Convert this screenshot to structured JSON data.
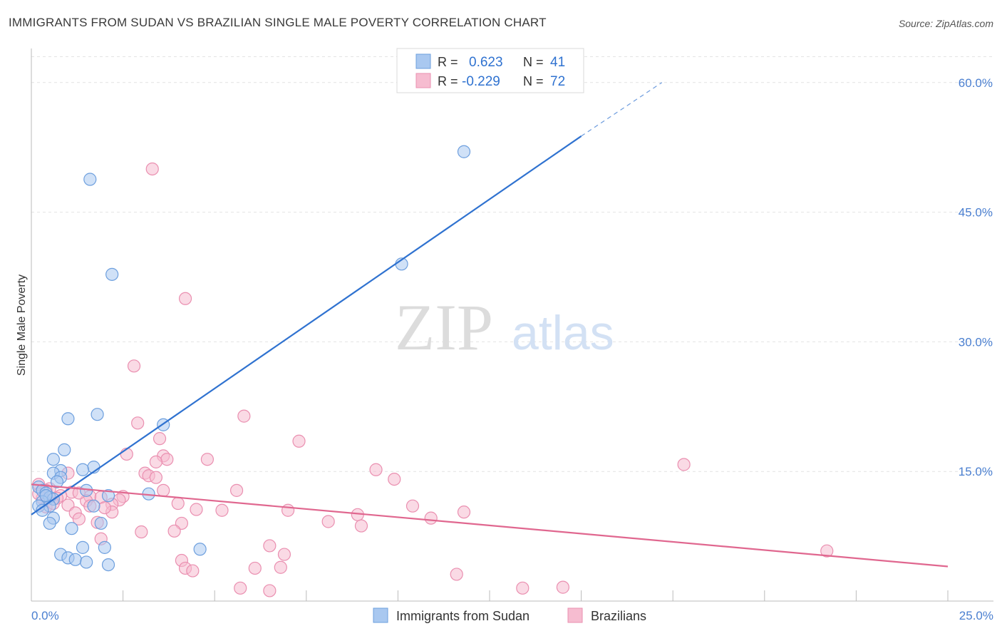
{
  "header": {
    "title": "IMMIGRANTS FROM SUDAN VS BRAZILIAN SINGLE MALE POVERTY CORRELATION CHART",
    "source": "Source: ZipAtlas.com"
  },
  "colors": {
    "sudan_fill": "#a9c8f0",
    "sudan_stroke": "#6d9fde",
    "sudan_line": "#2f72d0",
    "brazil_fill": "#f6bcd0",
    "brazil_stroke": "#ea8fb0",
    "brazil_line": "#e0678f",
    "axis_label": "#4a7fd0",
    "grid": "#e2e2e2"
  },
  "legend_box": {
    "row1": {
      "r_label": "R =",
      "r_value": "0.623",
      "n_label": "N =",
      "n_value": "41"
    },
    "row2": {
      "r_label": "R =",
      "r_value": "-0.229",
      "n_label": "N =",
      "n_value": "72"
    }
  },
  "bottom_legend": {
    "sudan": "Immigrants from Sudan",
    "brazil": "Brazilians"
  },
  "watermark": {
    "zip": "ZIP",
    "atlas": "atlas"
  },
  "chart_data": {
    "type": "scatter",
    "title": "IMMIGRANTS FROM SUDAN VS BRAZILIAN SINGLE MALE POVERTY CORRELATION CHART",
    "xlabel": "",
    "ylabel": "Single Male Poverty",
    "xlim": [
      0,
      25
    ],
    "ylim": [
      0,
      63
    ],
    "x_tick_labels": [
      "0.0%",
      "25.0%"
    ],
    "y_ticks": [
      15,
      30,
      45,
      60
    ],
    "y_tick_labels": [
      "15.0%",
      "30.0%",
      "45.0%",
      "60.0%"
    ],
    "series": [
      {
        "name": "Immigrants from Sudan",
        "r": 0.623,
        "n": 41,
        "trend": {
          "x0": 0,
          "y0": 10.0,
          "x1": 15,
          "y1": 53.8,
          "dash_to_x": 17.2,
          "dash_to_y": 60.0
        },
        "points": [
          [
            1.6,
            48.8
          ],
          [
            2.2,
            37.8
          ],
          [
            11.8,
            52.0
          ],
          [
            10.1,
            39.0
          ],
          [
            1.0,
            21.1
          ],
          [
            1.8,
            21.6
          ],
          [
            3.6,
            20.4
          ],
          [
            0.9,
            17.5
          ],
          [
            0.6,
            16.4
          ],
          [
            1.7,
            15.5
          ],
          [
            1.4,
            15.2
          ],
          [
            0.8,
            15.1
          ],
          [
            0.6,
            14.8
          ],
          [
            0.8,
            14.3
          ],
          [
            0.7,
            13.8
          ],
          [
            0.2,
            13.2
          ],
          [
            0.3,
            12.8
          ],
          [
            0.4,
            12.5
          ],
          [
            1.5,
            12.8
          ],
          [
            2.1,
            12.2
          ],
          [
            3.2,
            12.4
          ],
          [
            0.5,
            12.0
          ],
          [
            0.6,
            11.8
          ],
          [
            0.3,
            11.5
          ],
          [
            0.5,
            11.0
          ],
          [
            0.2,
            11.0
          ],
          [
            1.7,
            11.0
          ],
          [
            0.3,
            10.5
          ],
          [
            0.6,
            9.6
          ],
          [
            0.5,
            9.0
          ],
          [
            1.1,
            8.4
          ],
          [
            1.9,
            9.0
          ],
          [
            2.0,
            6.2
          ],
          [
            1.4,
            6.2
          ],
          [
            4.6,
            6.0
          ],
          [
            0.8,
            5.4
          ],
          [
            1.0,
            5.0
          ],
          [
            1.2,
            4.8
          ],
          [
            1.5,
            4.5
          ],
          [
            2.1,
            4.2
          ],
          [
            0.4,
            12.2
          ]
        ]
      },
      {
        "name": "Brazilians",
        "r": -0.229,
        "n": 72,
        "trend": {
          "x0": 0,
          "y0": 13.5,
          "x1": 25,
          "y1": 4.0
        },
        "points": [
          [
            3.3,
            50.0
          ],
          [
            4.2,
            35.0
          ],
          [
            2.8,
            27.2
          ],
          [
            5.8,
            21.4
          ],
          [
            2.9,
            20.6
          ],
          [
            3.5,
            18.8
          ],
          [
            7.3,
            18.5
          ],
          [
            17.8,
            15.8
          ],
          [
            2.6,
            17.0
          ],
          [
            3.6,
            16.8
          ],
          [
            4.8,
            16.4
          ],
          [
            3.7,
            16.4
          ],
          [
            3.4,
            16.1
          ],
          [
            9.4,
            15.2
          ],
          [
            3.1,
            14.8
          ],
          [
            3.2,
            14.5
          ],
          [
            3.4,
            14.3
          ],
          [
            1.0,
            14.8
          ],
          [
            9.9,
            14.1
          ],
          [
            0.2,
            13.5
          ],
          [
            0.5,
            13.0
          ],
          [
            0.4,
            12.8
          ],
          [
            1.1,
            12.6
          ],
          [
            3.6,
            12.8
          ],
          [
            5.6,
            12.8
          ],
          [
            0.8,
            12.2
          ],
          [
            2.5,
            12.1
          ],
          [
            1.6,
            12.1
          ],
          [
            1.9,
            12.0
          ],
          [
            0.3,
            11.9
          ],
          [
            0.7,
            11.9
          ],
          [
            1.5,
            11.6
          ],
          [
            2.4,
            11.7
          ],
          [
            2.2,
            11.2
          ],
          [
            4.0,
            11.3
          ],
          [
            1.0,
            11.1
          ],
          [
            1.6,
            11.0
          ],
          [
            0.4,
            10.9
          ],
          [
            10.4,
            11.0
          ],
          [
            4.5,
            10.6
          ],
          [
            5.2,
            10.5
          ],
          [
            7.0,
            10.5
          ],
          [
            11.8,
            10.3
          ],
          [
            2.2,
            10.3
          ],
          [
            1.2,
            10.2
          ],
          [
            8.9,
            10.0
          ],
          [
            10.9,
            9.6
          ],
          [
            1.3,
            9.5
          ],
          [
            8.1,
            9.2
          ],
          [
            4.1,
            9.0
          ],
          [
            1.8,
            9.1
          ],
          [
            9.0,
            8.7
          ],
          [
            3.0,
            8.0
          ],
          [
            3.9,
            8.1
          ],
          [
            1.9,
            7.2
          ],
          [
            6.5,
            6.4
          ],
          [
            6.9,
            5.4
          ],
          [
            21.7,
            5.8
          ],
          [
            4.1,
            4.7
          ],
          [
            4.2,
            3.8
          ],
          [
            4.4,
            3.5
          ],
          [
            6.1,
            3.8
          ],
          [
            6.8,
            3.9
          ],
          [
            11.6,
            3.1
          ],
          [
            5.7,
            1.5
          ],
          [
            6.5,
            1.2
          ],
          [
            13.4,
            1.5
          ],
          [
            14.5,
            1.6
          ],
          [
            0.2,
            12.4
          ],
          [
            0.6,
            11.3
          ],
          [
            2.0,
            10.8
          ],
          [
            1.3,
            12.5
          ]
        ]
      }
    ]
  }
}
